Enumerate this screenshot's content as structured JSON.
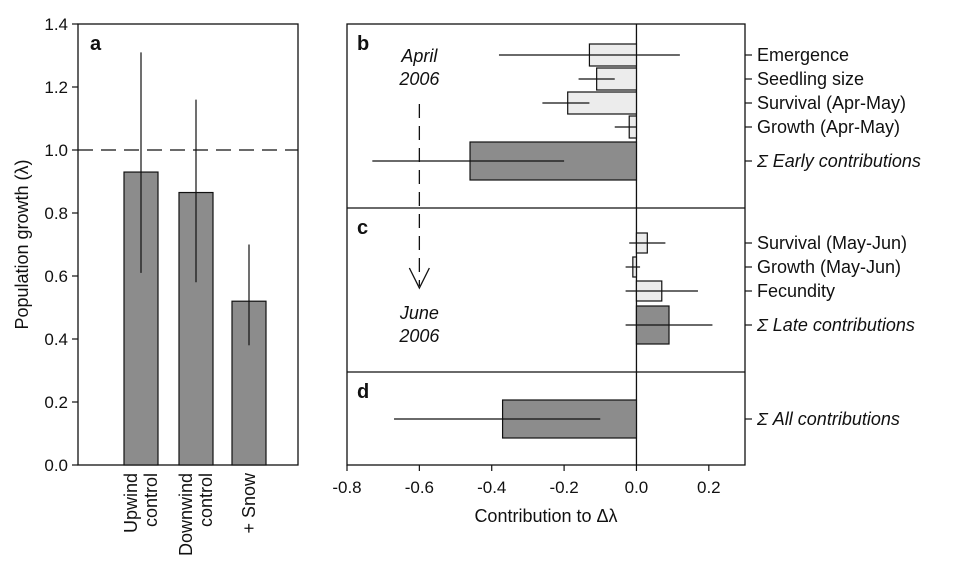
{
  "colors": {
    "bar_dark": "#8c8c8c",
    "bar_light": "#ececec",
    "ink": "#111111"
  },
  "chart_data": [
    {
      "panel": "a",
      "type": "bar",
      "ylabel": "Population growth (λ)",
      "ylim": [
        0,
        1.4
      ],
      "yticks": [
        "0.0",
        "0.2",
        "0.4",
        "0.6",
        "0.8",
        "1.0",
        "1.2",
        "1.4"
      ],
      "reference_line": 1.0,
      "categories": [
        "Upwind control",
        "Downwind control",
        "+ Snow"
      ],
      "category_lines": [
        [
          "Upwind",
          "control"
        ],
        [
          "Downwind",
          "control"
        ],
        [
          "+ Snow"
        ]
      ],
      "values": [
        0.93,
        0.865,
        0.52
      ],
      "err_low": [
        0.61,
        0.58,
        0.38
      ],
      "err_high": [
        1.31,
        1.16,
        0.7
      ]
    },
    {
      "type": "bar",
      "orientation": "horizontal",
      "xlabel": "Contribution to Δλ",
      "xlim": [
        -0.8,
        0.3
      ],
      "xticks": [
        "-0.8",
        "-0.6",
        "-0.4",
        "-0.2",
        "0.0",
        "0.2"
      ],
      "panels": [
        {
          "panel": "b",
          "rows": [
            {
              "label": "Emergence",
              "italic": false,
              "shade": "light",
              "value": -0.13,
              "err_low": -0.38,
              "err_high": 0.12
            },
            {
              "label": "Seedling size",
              "italic": false,
              "shade": "light",
              "value": -0.11,
              "err_low": -0.16,
              "err_high": -0.06
            },
            {
              "label": "Survival (Apr-May)",
              "italic": false,
              "shade": "light",
              "value": -0.19,
              "err_low": -0.26,
              "err_high": -0.13
            },
            {
              "label": "Growth (Apr-May)",
              "italic": false,
              "shade": "light",
              "value": -0.02,
              "err_low": -0.06,
              "err_high": 0.0
            },
            {
              "label": "Σ Early contributions",
              "italic": true,
              "shade": "dark",
              "value": -0.46,
              "err_low": -0.73,
              "err_high": -0.2
            }
          ]
        },
        {
          "panel": "c",
          "rows": [
            {
              "label": "Survival (May-Jun)",
              "italic": false,
              "shade": "light",
              "value": 0.03,
              "err_low": -0.02,
              "err_high": 0.08
            },
            {
              "label": "Growth (May-Jun)",
              "italic": false,
              "shade": "light",
              "value": -0.01,
              "err_low": -0.03,
              "err_high": 0.01
            },
            {
              "label": "Fecundity",
              "italic": false,
              "shade": "light",
              "value": 0.07,
              "err_low": -0.03,
              "err_high": 0.17
            },
            {
              "label": "Σ Late contributions",
              "italic": true,
              "shade": "dark",
              "value": 0.09,
              "err_low": -0.03,
              "err_high": 0.21
            }
          ]
        },
        {
          "panel": "d",
          "rows": [
            {
              "label": "Σ All contributions",
              "italic": true,
              "shade": "dark",
              "value": -0.37,
              "err_low": -0.67,
              "err_high": -0.1
            }
          ]
        }
      ],
      "annotations": {
        "start_lines": [
          "April",
          "2006"
        ],
        "end_lines": [
          "June",
          "2006"
        ],
        "arrow_x": -0.6
      }
    }
  ]
}
